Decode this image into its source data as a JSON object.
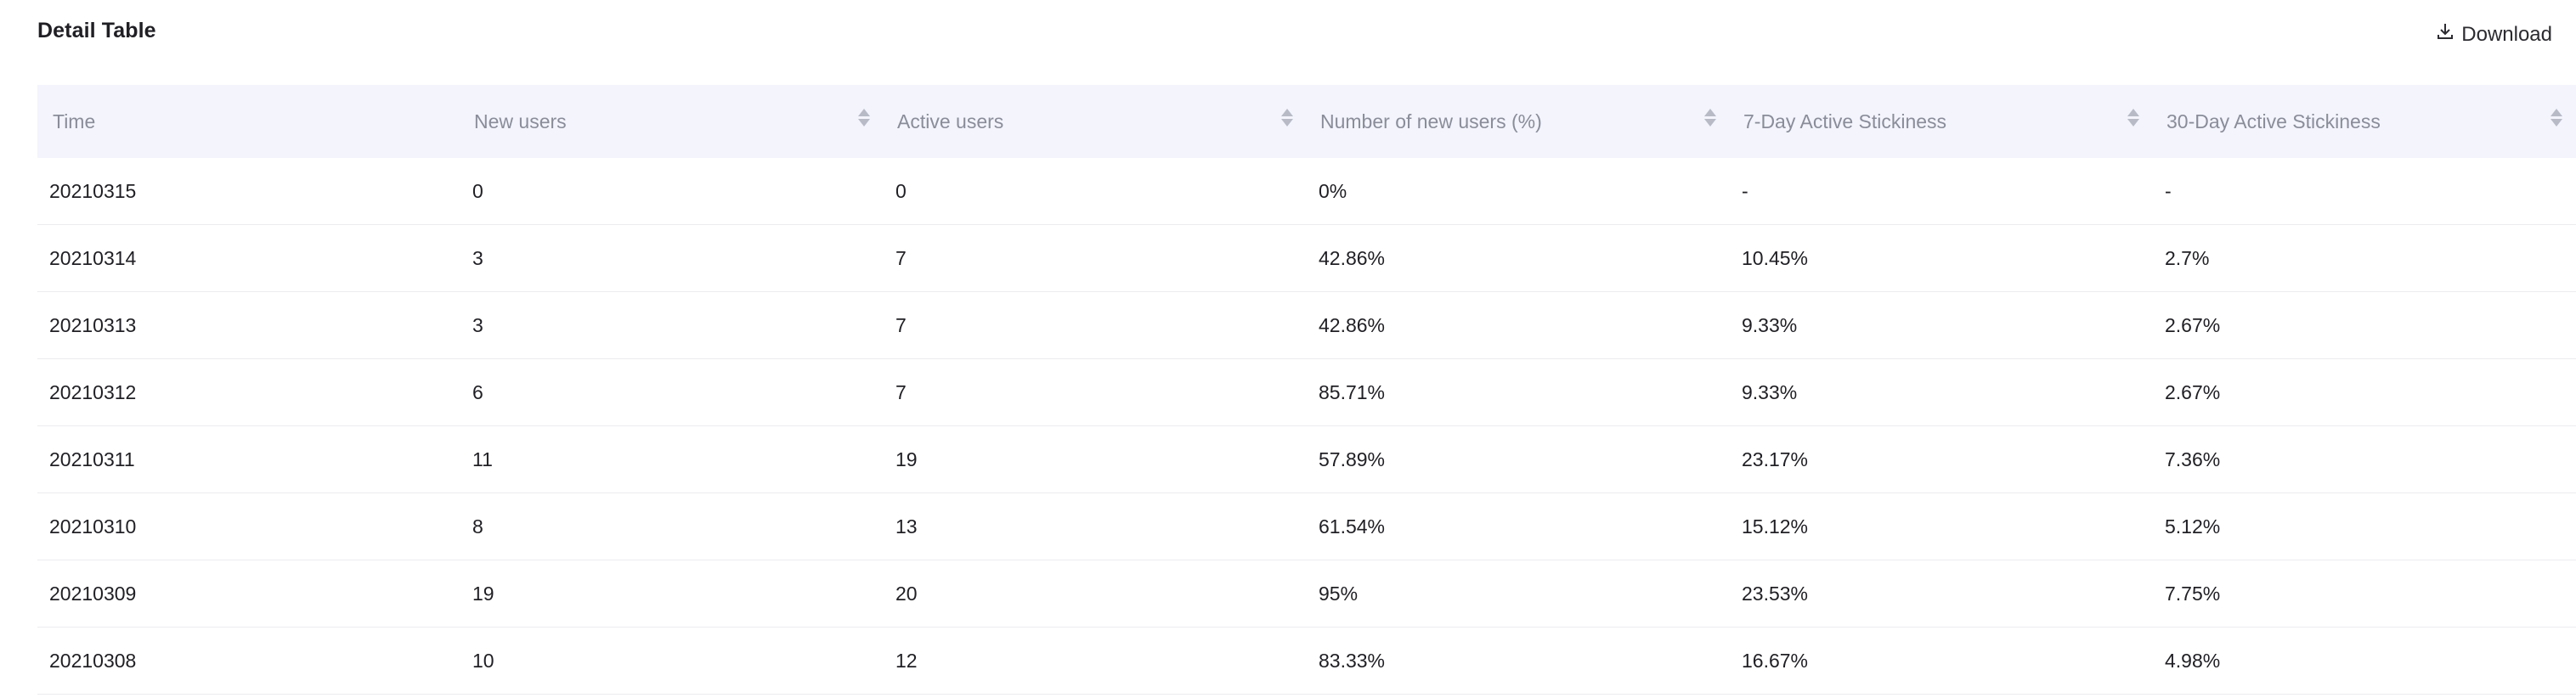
{
  "header": {
    "title": "Detail Table",
    "download_label": "Download"
  },
  "table": {
    "columns": [
      {
        "label": "Time",
        "sortable": false
      },
      {
        "label": "New users",
        "sortable": true
      },
      {
        "label": "Active users",
        "sortable": true
      },
      {
        "label": "Number of new users (%)",
        "sortable": true
      },
      {
        "label": "7-Day Active Stickiness",
        "sortable": true
      },
      {
        "label": "30-Day Active Stickiness",
        "sortable": true
      }
    ],
    "rows": [
      [
        "20210315",
        "0",
        "0",
        "0%",
        "-",
        "-"
      ],
      [
        "20210314",
        "3",
        "7",
        "42.86%",
        "10.45%",
        "2.7%"
      ],
      [
        "20210313",
        "3",
        "7",
        "42.86%",
        "9.33%",
        "2.67%"
      ],
      [
        "20210312",
        "6",
        "7",
        "85.71%",
        "9.33%",
        "2.67%"
      ],
      [
        "20210311",
        "11",
        "19",
        "57.89%",
        "23.17%",
        "7.36%"
      ],
      [
        "20210310",
        "8",
        "13",
        "61.54%",
        "15.12%",
        "5.12%"
      ],
      [
        "20210309",
        "19",
        "20",
        "95%",
        "23.53%",
        "7.75%"
      ],
      [
        "20210308",
        "10",
        "12",
        "83.33%",
        "16.67%",
        "4.98%"
      ]
    ]
  }
}
